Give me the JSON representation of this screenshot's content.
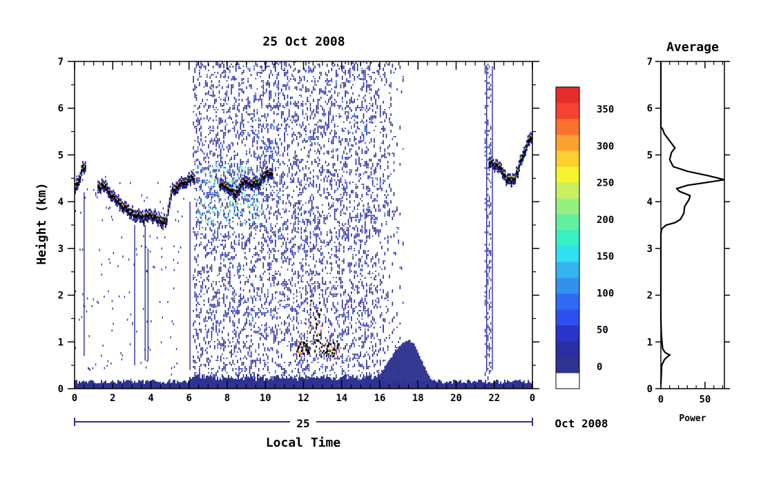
{
  "chart_data": [
    {
      "type": "heatmap",
      "title": "25 Oct 2008",
      "xlabel": "Local Time",
      "ylabel": "Height (km)",
      "x_ticks": [
        "0",
        "2",
        "4",
        "6",
        "8",
        "10",
        "12",
        "14",
        "16",
        "18",
        "20",
        "22",
        "0"
      ],
      "x_tick_values": [
        0,
        2,
        4,
        6,
        8,
        10,
        12,
        14,
        16,
        18,
        20,
        22,
        24
      ],
      "xlim": [
        0,
        24
      ],
      "y_ticks": [
        "0",
        "1",
        "2",
        "3",
        "4",
        "5",
        "6",
        "7"
      ],
      "ylim": [
        0,
        7
      ],
      "date_label": "25",
      "date_suffix": "Oct 2008",
      "colorbar": {
        "ticks": [
          "0",
          "50",
          "100",
          "150",
          "200",
          "250",
          "300",
          "350"
        ],
        "tick_values": [
          0,
          50,
          100,
          150,
          200,
          250,
          300,
          350
        ],
        "range": [
          -30,
          380
        ],
        "colors": [
          "#ffffff",
          "#2e3391",
          "#2b2ea3",
          "#2a34c8",
          "#2f4ef0",
          "#2f6bf2",
          "#3490ee",
          "#35b3f0",
          "#2fe0f0",
          "#38f0c0",
          "#60f0a0",
          "#96f080",
          "#c8f060",
          "#f6f22e",
          "#fccf30",
          "#fca12f",
          "#fb7230",
          "#f44330",
          "#e52d2a"
        ]
      },
      "features": {
        "surface_layer_top_km": 0.15,
        "late_afternoon_hump": {
          "x_range": [
            14.5,
            19.2
          ],
          "peak_time": 17.5,
          "peak_height_km": 1.0
        },
        "noise_band": {
          "x_range": [
            6.2,
            17.2
          ]
        },
        "layer_trace": [
          [
            0.0,
            4.25
          ],
          [
            0.2,
            4.5
          ],
          [
            0.4,
            4.7
          ],
          [
            0.6,
            4.75
          ],
          [
            1.2,
            4.35
          ],
          [
            1.6,
            4.3
          ],
          [
            2.0,
            4.1
          ],
          [
            2.4,
            3.95
          ],
          [
            2.8,
            3.8
          ],
          [
            3.2,
            3.7
          ],
          [
            3.6,
            3.65
          ],
          [
            4.0,
            3.7
          ],
          [
            4.4,
            3.6
          ],
          [
            4.8,
            3.6
          ],
          [
            5.1,
            4.25
          ],
          [
            5.5,
            4.4
          ],
          [
            5.9,
            4.45
          ],
          [
            6.3,
            4.55
          ],
          [
            7.0,
            4.5
          ],
          [
            7.6,
            4.4
          ],
          [
            8.1,
            4.3
          ],
          [
            8.4,
            4.15
          ],
          [
            8.8,
            4.45
          ],
          [
            9.2,
            4.4
          ],
          [
            9.6,
            4.4
          ],
          [
            10.0,
            4.6
          ],
          [
            10.4,
            4.6
          ]
        ],
        "late_layer_trace": [
          [
            21.7,
            4.85
          ],
          [
            22.2,
            4.75
          ],
          [
            22.6,
            4.5
          ],
          [
            23.0,
            4.45
          ],
          [
            23.4,
            4.9
          ],
          [
            23.8,
            5.35
          ],
          [
            24.0,
            5.45
          ]
        ],
        "low_cluster": {
          "x_range": [
            11.6,
            13.9
          ],
          "height_range": [
            0.7,
            1.7
          ]
        }
      }
    },
    {
      "type": "line",
      "title": "Average",
      "xlabel": "Power",
      "x_ticks": [
        "0",
        "50"
      ],
      "x_tick_values": [
        0,
        50
      ],
      "xlim": [
        0,
        72
      ],
      "y_ticks": [
        "0",
        "1",
        "2",
        "3",
        "4",
        "5",
        "6",
        "7"
      ],
      "ylim": [
        0,
        7
      ],
      "series": [
        {
          "points": [
            [
              0,
              0.1
            ],
            [
              1,
              0.5
            ],
            [
              4,
              0.62
            ],
            [
              6,
              0.66
            ],
            [
              10,
              0.72
            ],
            [
              5,
              0.77
            ],
            [
              2,
              0.85
            ],
            [
              1,
              1.05
            ],
            [
              0.5,
              1.2
            ],
            [
              0,
              1.5
            ],
            [
              0,
              3.3
            ],
            [
              1,
              3.42
            ],
            [
              6,
              3.5
            ],
            [
              16,
              3.55
            ],
            [
              22,
              3.62
            ],
            [
              26,
              3.75
            ],
            [
              27,
              3.9
            ],
            [
              32,
              4.05
            ],
            [
              33,
              4.13
            ],
            [
              21,
              4.22
            ],
            [
              18,
              4.28
            ],
            [
              30,
              4.35
            ],
            [
              55,
              4.42
            ],
            [
              72,
              4.47
            ],
            [
              55,
              4.55
            ],
            [
              30,
              4.65
            ],
            [
              14,
              4.75
            ],
            [
              10,
              4.9
            ],
            [
              12,
              5.05
            ],
            [
              16,
              5.15
            ],
            [
              12,
              5.25
            ],
            [
              8,
              5.35
            ],
            [
              4,
              5.45
            ],
            [
              2,
              5.55
            ],
            [
              0,
              5.6
            ],
            [
              0,
              7
            ]
          ]
        }
      ]
    }
  ]
}
